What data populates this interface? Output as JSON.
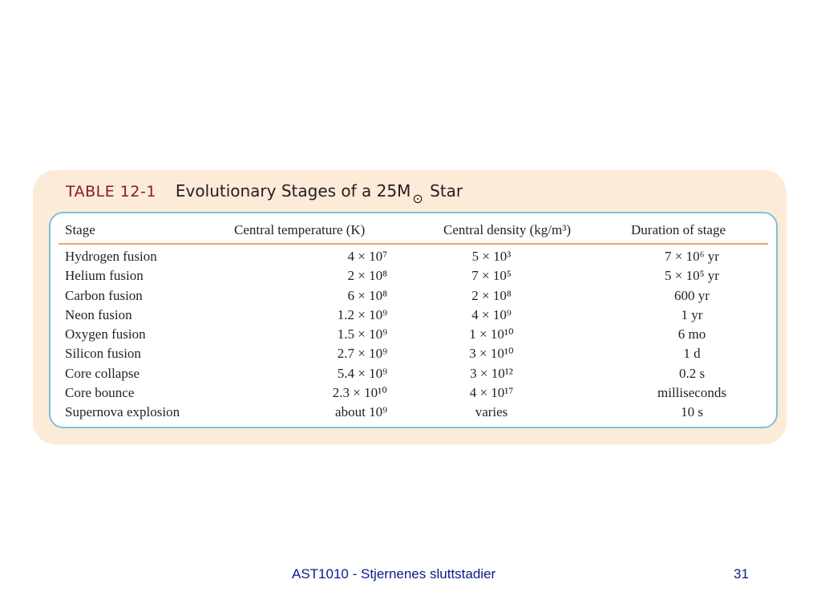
{
  "table": {
    "label": "TABLE 12-1",
    "title_prefix": "Evolutionary Stages of a 25M",
    "title_symbol": "⊙",
    "title_suffix": " Star",
    "headers": [
      "Stage",
      "Central temperature (K)",
      "Central density (kg/m³)",
      "Duration of stage"
    ],
    "rows": [
      [
        "Hydrogen fusion",
        "4 × 10⁷",
        "5 × 10³",
        "7 × 10⁶ yr"
      ],
      [
        "Helium fusion",
        "2 × 10⁸",
        "7 × 10⁵",
        "5 × 10⁵ yr"
      ],
      [
        "Carbon fusion",
        "6 × 10⁸",
        "2 × 10⁸",
        "600 yr"
      ],
      [
        "Neon fusion",
        "1.2 × 10⁹",
        "4 × 10⁹",
        "1 yr"
      ],
      [
        "Oxygen fusion",
        "1.5 × 10⁹",
        "1 × 10¹⁰",
        "6 mo"
      ],
      [
        "Silicon fusion",
        "2.7 × 10⁹",
        "3 × 10¹⁰",
        "1 d"
      ],
      [
        "Core collapse",
        "5.4 × 10⁹",
        "3 × 10¹²",
        "0.2 s"
      ],
      [
        "Core bounce",
        "2.3 × 10¹⁰",
        "4 × 10¹⁷",
        "milliseconds"
      ],
      [
        "Supernova explosion",
        "about 10⁹",
        "varies",
        "10 s"
      ]
    ]
  },
  "footer": {
    "text": "AST1010 - Stjernenes sluttstadier",
    "page": "31"
  }
}
